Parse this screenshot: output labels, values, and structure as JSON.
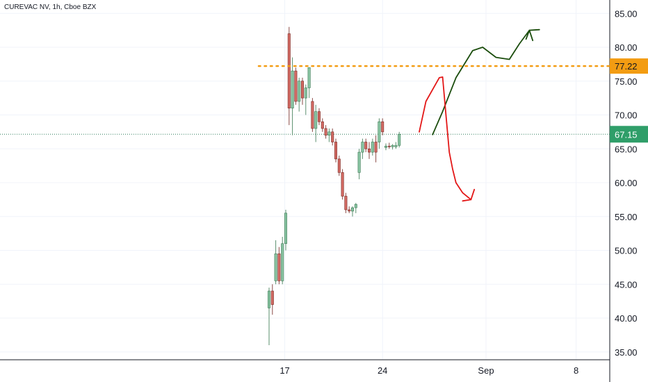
{
  "chart_title": "CUREVAC NV, 1h, Cboe BZX",
  "colors": {
    "up": "#26a69a",
    "up_fill": "#89c4a2",
    "down": "#ef5350",
    "down_fill": "#d26a63",
    "grid": "#f0f3fa",
    "axis": "#131722",
    "resistance": "#f39c12",
    "current_price": "#2e7d5b",
    "bull_arrow": "#1b4d0d",
    "bear_arrow": "#e31717"
  },
  "chart_data": {
    "type": "candlestick",
    "symbol": "CUREVAC NV",
    "interval": "1h",
    "exchange": "Cboe BZX",
    "ylim": [
      34,
      86
    ],
    "y_ticks": [
      "85.00",
      "80.00",
      "75.00",
      "70.00",
      "65.00",
      "60.00",
      "55.00",
      "50.00",
      "45.00",
      "40.00",
      "35.00"
    ],
    "y_tick_values": [
      85,
      80,
      75,
      70,
      65,
      60,
      55,
      50,
      45,
      40,
      35
    ],
    "x_ticks": [
      {
        "label": "17",
        "bar": 4.7
      },
      {
        "label": "24",
        "bar": 34
      },
      {
        "label": "Sep",
        "bar": 65
      },
      {
        "label": "8",
        "bar": 92
      }
    ],
    "x_range": [
      -79,
      98
    ],
    "grid": true,
    "candles": [
      {
        "o": 41.5,
        "h": 44.5,
        "l": 36.0,
        "c": 44.0
      },
      {
        "o": 44.0,
        "h": 45.0,
        "l": 40.5,
        "c": 42.0
      },
      {
        "o": 45.5,
        "h": 51.5,
        "l": 45.0,
        "c": 49.5
      },
      {
        "o": 49.5,
        "h": 50.5,
        "l": 45.0,
        "c": 45.5
      },
      {
        "o": 45.5,
        "h": 52.0,
        "l": 45.0,
        "c": 51.0
      },
      {
        "o": 51.0,
        "h": 56.0,
        "l": 50.0,
        "c": 55.5
      },
      {
        "o": 82.0,
        "h": 83.0,
        "l": 68.5,
        "c": 71.0
      },
      {
        "o": 71.0,
        "h": 78.5,
        "l": 67.0,
        "c": 76.5
      },
      {
        "o": 76.5,
        "h": 77.0,
        "l": 71.5,
        "c": 72.0
      },
      {
        "o": 72.0,
        "h": 75.5,
        "l": 70.5,
        "c": 75.0
      },
      {
        "o": 75.0,
        "h": 75.5,
        "l": 71.5,
        "c": 72.5
      },
      {
        "o": 72.5,
        "h": 74.5,
        "l": 70.0,
        "c": 74.0
      },
      {
        "o": 74.0,
        "h": 77.0,
        "l": 72.5,
        "c": 77.0
      },
      {
        "o": 72.0,
        "h": 72.5,
        "l": 67.5,
        "c": 68.0
      },
      {
        "o": 68.0,
        "h": 71.5,
        "l": 66.0,
        "c": 70.5
      },
      {
        "o": 70.5,
        "h": 71.0,
        "l": 68.5,
        "c": 69.0
      },
      {
        "o": 69.0,
        "h": 69.5,
        "l": 67.5,
        "c": 68.0
      },
      {
        "o": 68.0,
        "h": 68.5,
        "l": 66.5,
        "c": 67.0
      },
      {
        "o": 67.0,
        "h": 68.0,
        "l": 66.0,
        "c": 67.5
      },
      {
        "o": 67.5,
        "h": 68.0,
        "l": 65.5,
        "c": 66.0
      },
      {
        "o": 66.0,
        "h": 66.5,
        "l": 63.0,
        "c": 63.5
      },
      {
        "o": 63.5,
        "h": 64.0,
        "l": 61.0,
        "c": 61.5
      },
      {
        "o": 61.5,
        "h": 62.0,
        "l": 57.5,
        "c": 58.0
      },
      {
        "o": 58.0,
        "h": 58.5,
        "l": 55.5,
        "c": 56.0
      },
      {
        "o": 56.0,
        "h": 56.5,
        "l": 55.5,
        "c": 55.8
      },
      {
        "o": 55.8,
        "h": 56.5,
        "l": 55.0,
        "c": 56.3
      },
      {
        "o": 56.3,
        "h": 57.0,
        "l": 55.5,
        "c": 56.8
      },
      {
        "o": 61.5,
        "h": 65.0,
        "l": 60.5,
        "c": 64.5
      },
      {
        "o": 64.5,
        "h": 66.5,
        "l": 63.5,
        "c": 66.0
      },
      {
        "o": 66.0,
        "h": 66.5,
        "l": 64.5,
        "c": 65.0
      },
      {
        "o": 65.0,
        "h": 66.0,
        "l": 63.5,
        "c": 64.5
      },
      {
        "o": 64.5,
        "h": 66.5,
        "l": 64.0,
        "c": 66.0
      },
      {
        "o": 66.0,
        "h": 67.0,
        "l": 63.0,
        "c": 64.5
      },
      {
        "o": 66.0,
        "h": 69.5,
        "l": 65.0,
        "c": 69.0
      },
      {
        "o": 69.0,
        "h": 69.5,
        "l": 67.0,
        "c": 67.5
      },
      {
        "o": 65.2,
        "h": 65.8,
        "l": 64.8,
        "c": 65.4
      },
      {
        "o": 65.4,
        "h": 65.9,
        "l": 65.0,
        "c": 65.3
      },
      {
        "o": 65.3,
        "h": 65.7,
        "l": 64.9,
        "c": 65.5
      },
      {
        "o": 65.3,
        "h": 66.0,
        "l": 65.0,
        "c": 65.5
      },
      {
        "o": 65.5,
        "h": 67.5,
        "l": 65.2,
        "c": 67.15
      }
    ],
    "levels": [
      {
        "name": "resistance",
        "value": 77.22,
        "label": "77.22",
        "style": "dotted"
      },
      {
        "name": "current-price",
        "value": 67.15,
        "label": "67.15",
        "style": "dotted"
      }
    ],
    "drawings": [
      {
        "name": "bullish-projection-arrow",
        "points": [
          [
            49,
            67.1
          ],
          [
            52,
            70.5
          ],
          [
            56,
            75.5
          ],
          [
            61,
            79.5
          ],
          [
            64,
            80
          ],
          [
            68,
            78.5
          ],
          [
            72,
            78.2
          ],
          [
            75,
            80.5
          ],
          [
            78,
            82.5
          ]
        ],
        "head": [
          [
            77,
            81.2
          ],
          [
            78,
            82.5
          ],
          [
            81,
            82.6
          ],
          [
            78,
            82.5
          ],
          [
            79,
            81.0
          ]
        ]
      },
      {
        "name": "bearish-projection-arrow",
        "points": [
          [
            45,
            67.5
          ],
          [
            47,
            72
          ],
          [
            51,
            75.5
          ],
          [
            52,
            75.6
          ],
          [
            53,
            70
          ],
          [
            54,
            64.5
          ],
          [
            55,
            62
          ],
          [
            56,
            60
          ],
          [
            58,
            58.5
          ],
          [
            60.5,
            57.5
          ]
        ],
        "head": [
          [
            58,
            57.3
          ],
          [
            60.5,
            57.5
          ],
          [
            61.5,
            59.0
          ]
        ]
      }
    ]
  }
}
